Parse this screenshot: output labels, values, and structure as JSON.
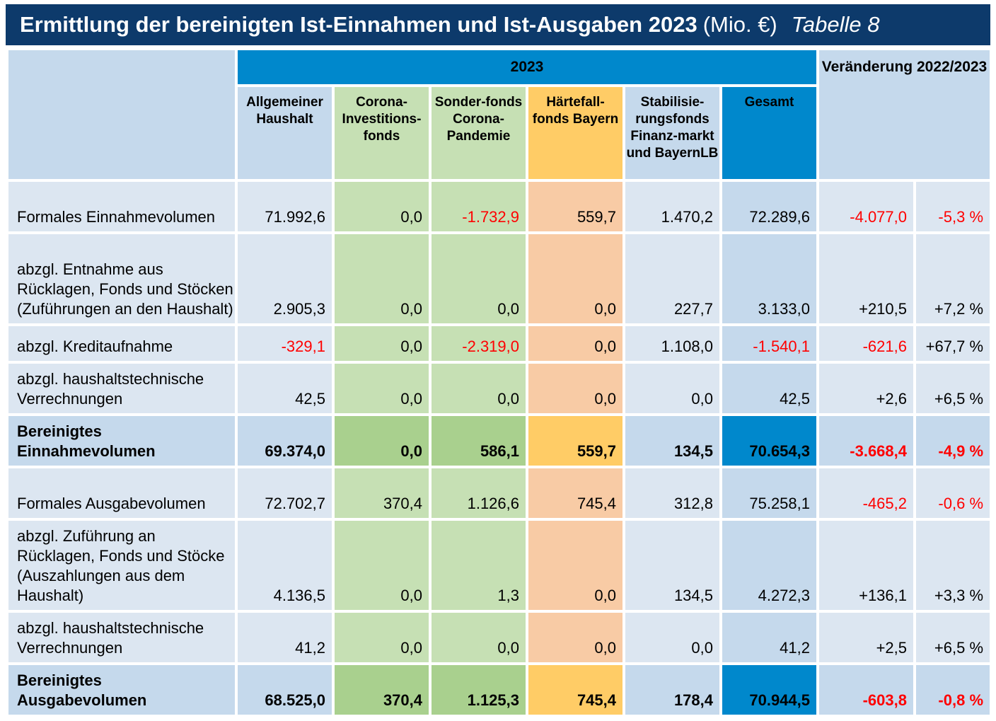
{
  "title": {
    "main": "Ermittlung der bereinigten Ist-Einnahmen und Ist-Ausgaben 2023",
    "unit": "(Mio. €)",
    "table_no": "Tabelle 8"
  },
  "header": {
    "year": "2023",
    "change": "Veränderung 2022/2023",
    "columns": [
      "Allgemeiner Haushalt",
      "Corona-Investitions-fonds",
      "Sonder-fonds Corona-Pandemie",
      "Härtefall-fonds Bayern",
      "Stabilisie-rungsfonds Finanz-markt und BayernLB",
      "Gesamt"
    ]
  },
  "rows": [
    {
      "label": "Formales Einnahmevolumen",
      "values": [
        "71.992,6",
        "0,0",
        "-1.732,9",
        "559,7",
        "1.470,2",
        "72.289,6"
      ],
      "change_abs": "-4.077,0",
      "change_pct": "-5,3 %"
    },
    {
      "label": "abzgl. Entnahme aus Rücklagen, Fonds und Stöcken (Zuführungen an den Haushalt)",
      "values": [
        "2.905,3",
        "0,0",
        "0,0",
        "0,0",
        "227,7",
        "3.133,0"
      ],
      "change_abs": "+210,5",
      "change_pct": "+7,2 %"
    },
    {
      "label": "abzgl. Kreditaufnahme",
      "values": [
        "-329,1",
        "0,0",
        "-2.319,0",
        "0,0",
        "1.108,0",
        "-1.540,1"
      ],
      "change_abs": "-621,6",
      "change_pct": "+67,7 %"
    },
    {
      "label": "abzgl. haushaltstechnische Verrechnungen",
      "values": [
        "42,5",
        "0,0",
        "0,0",
        "0,0",
        "0,0",
        "42,5"
      ],
      "change_abs": "+2,6",
      "change_pct": "+6,5 %"
    },
    {
      "label": "Bereinigtes Einnahmevolumen",
      "values": [
        "69.374,0",
        "0,0",
        "586,1",
        "559,7",
        "134,5",
        "70.654,3"
      ],
      "change_abs": "-3.668,4",
      "change_pct": "-4,9 %"
    },
    {
      "label": "Formales Ausgabevolumen",
      "values": [
        "72.702,7",
        "370,4",
        "1.126,6",
        "745,4",
        "312,8",
        "75.258,1"
      ],
      "change_abs": "-465,2",
      "change_pct": "-0,6 %"
    },
    {
      "label": "abzgl. Zuführung an Rücklagen, Fonds und Stöcke (Auszahlungen aus dem Haushalt)",
      "values": [
        "4.136,5",
        "0,0",
        "1,3",
        "0,0",
        "134,5",
        "4.272,3"
      ],
      "change_abs": "+136,1",
      "change_pct": "+3,3 %"
    },
    {
      "label": "abzgl. haushaltstechnische Verrechnungen",
      "values": [
        "41,2",
        "0,0",
        "0,0",
        "0,0",
        "0,0",
        "41,2"
      ],
      "change_abs": "+2,5",
      "change_pct": "+6,5 %"
    },
    {
      "label": "Bereinigtes Ausgabevolumen",
      "values": [
        "68.525,0",
        "370,4",
        "1.125,3",
        "745,4",
        "178,4",
        "70.944,5"
      ],
      "change_abs": "-603,8",
      "change_pct": "-0,8 %"
    }
  ],
  "colors": {
    "title_bg": "#0d3a6b",
    "accent_blue": "#0088cc",
    "negative": "#ff0000"
  }
}
